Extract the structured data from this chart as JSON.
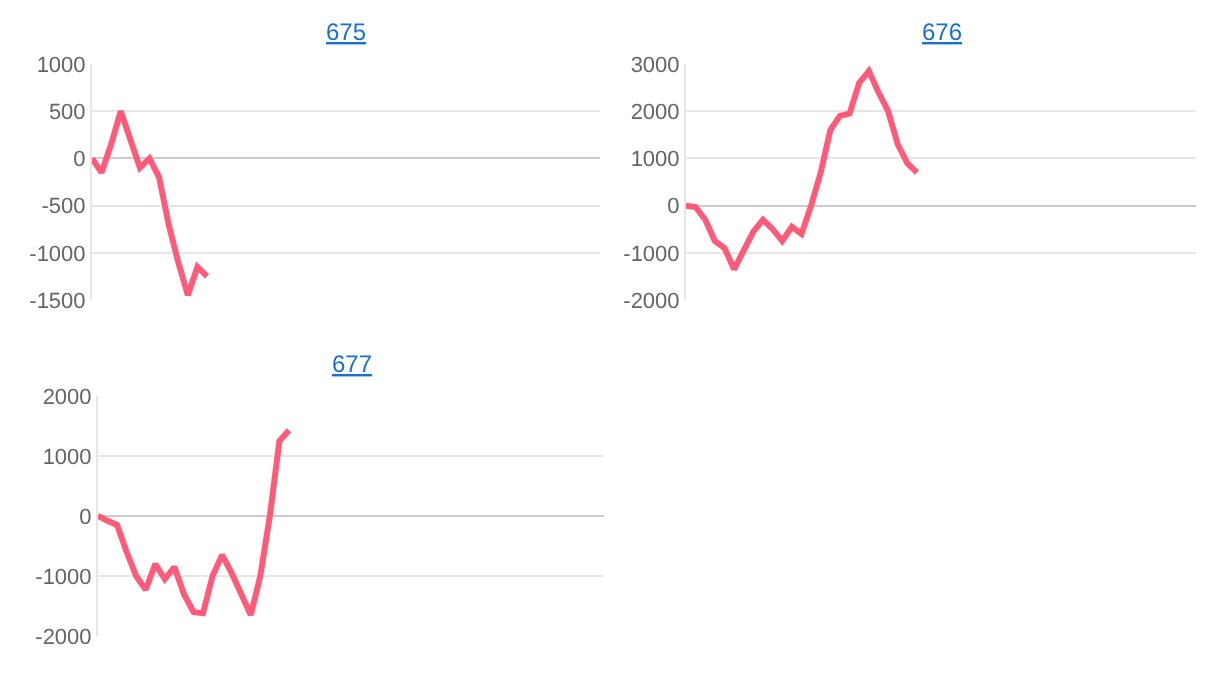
{
  "chart_data": [
    {
      "type": "line",
      "title": "675",
      "categories": [
        null,
        null,
        null,
        null,
        null,
        null,
        null,
        null,
        null,
        null,
        null,
        null,
        null,
        null,
        null,
        null,
        null,
        null,
        null,
        null,
        null,
        null,
        null,
        null,
        null,
        null,
        null,
        null,
        null,
        null,
        null,
        null,
        null,
        null,
        null,
        null,
        null,
        null,
        null,
        null,
        null,
        null,
        null,
        null,
        null,
        null,
        null,
        null,
        null,
        null,
        null,
        null,
        null,
        null
      ],
      "series": [
        {
          "color": "#ff5a78",
          "values": [
            0,
            -150,
            150,
            500,
            200,
            -100,
            0,
            -200,
            -700,
            -1100,
            -1450,
            -1150,
            -1250,
            null,
            null,
            null,
            null,
            null,
            null,
            null,
            null,
            null,
            null,
            null,
            null,
            null,
            null,
            null,
            null,
            null,
            null,
            null,
            null,
            null,
            null,
            null,
            null,
            null,
            null,
            null,
            null,
            null,
            null,
            null,
            null,
            null,
            null,
            null,
            null,
            null,
            null,
            null,
            null,
            null
          ]
        }
      ],
      "ylim": [
        -1500,
        1000
      ],
      "yticks": [
        -1500,
        -1000,
        -500,
        0,
        500,
        1000
      ],
      "grid": "y",
      "marker": "none",
      "line_style": "solid",
      "tick_labels": "y"
    },
    {
      "type": "line",
      "title": "676",
      "categories": [
        null,
        null,
        null,
        null,
        null,
        null,
        null,
        null,
        null,
        null,
        null,
        null,
        null,
        null,
        null,
        null,
        null,
        null,
        null,
        null,
        null,
        null,
        null,
        null,
        null,
        null,
        null,
        null,
        null,
        null,
        null,
        null,
        null,
        null,
        null,
        null,
        null,
        null,
        null,
        null,
        null,
        null,
        null,
        null,
        null,
        null,
        null,
        null,
        null,
        null,
        null,
        null,
        null,
        null
      ],
      "series": [
        {
          "color": "#ff5a78",
          "values": [
            0,
            -30,
            -300,
            -750,
            -900,
            -1350,
            -950,
            -550,
            -300,
            -500,
            -750,
            -450,
            -600,
            0,
            700,
            1600,
            1900,
            1950,
            2600,
            2850,
            2400,
            2000,
            1300,
            900,
            700,
            null,
            null,
            null,
            null,
            null,
            null,
            null,
            null,
            null,
            null,
            null,
            null,
            null,
            null,
            null,
            null,
            null,
            null,
            null,
            null,
            null,
            null,
            null,
            null,
            null,
            null,
            null,
            null,
            null
          ]
        }
      ],
      "ylim": [
        -2000,
        3000
      ],
      "yticks": [
        -2000,
        -1000,
        0,
        1000,
        2000,
        3000
      ],
      "grid": "y",
      "marker": "none",
      "line_style": "solid",
      "tick_labels": "y"
    },
    {
      "type": "line",
      "title": "677",
      "categories": [
        null,
        null,
        null,
        null,
        null,
        null,
        null,
        null,
        null,
        null,
        null,
        null,
        null,
        null,
        null,
        null,
        null,
        null,
        null,
        null,
        null,
        null,
        null,
        null,
        null,
        null,
        null,
        null,
        null,
        null,
        null,
        null,
        null,
        null,
        null,
        null,
        null,
        null,
        null,
        null,
        null,
        null,
        null,
        null,
        null,
        null,
        null,
        null,
        null,
        null,
        null,
        null,
        null,
        null
      ],
      "series": [
        {
          "color": "#ff5a78",
          "values": [
            0,
            -80,
            -150,
            -600,
            -1000,
            -1230,
            -800,
            -1050,
            -850,
            -1300,
            -1600,
            -1620,
            -1000,
            -650,
            -950,
            -1300,
            -1650,
            -1000,
            0,
            1250,
            1430,
            null,
            null,
            null,
            null,
            null,
            null,
            null,
            null,
            null,
            null,
            null,
            null,
            null,
            null,
            null,
            null,
            null,
            null,
            null,
            null,
            null,
            null,
            null,
            null,
            null,
            null,
            null,
            null,
            null,
            null,
            null,
            null,
            null
          ]
        }
      ],
      "ylim": [
        -2000,
        2000
      ],
      "yticks": [
        -2000,
        -1000,
        0,
        1000,
        2000
      ],
      "grid": "y",
      "marker": "none",
      "line_style": "solid",
      "tick_labels": "y"
    }
  ]
}
